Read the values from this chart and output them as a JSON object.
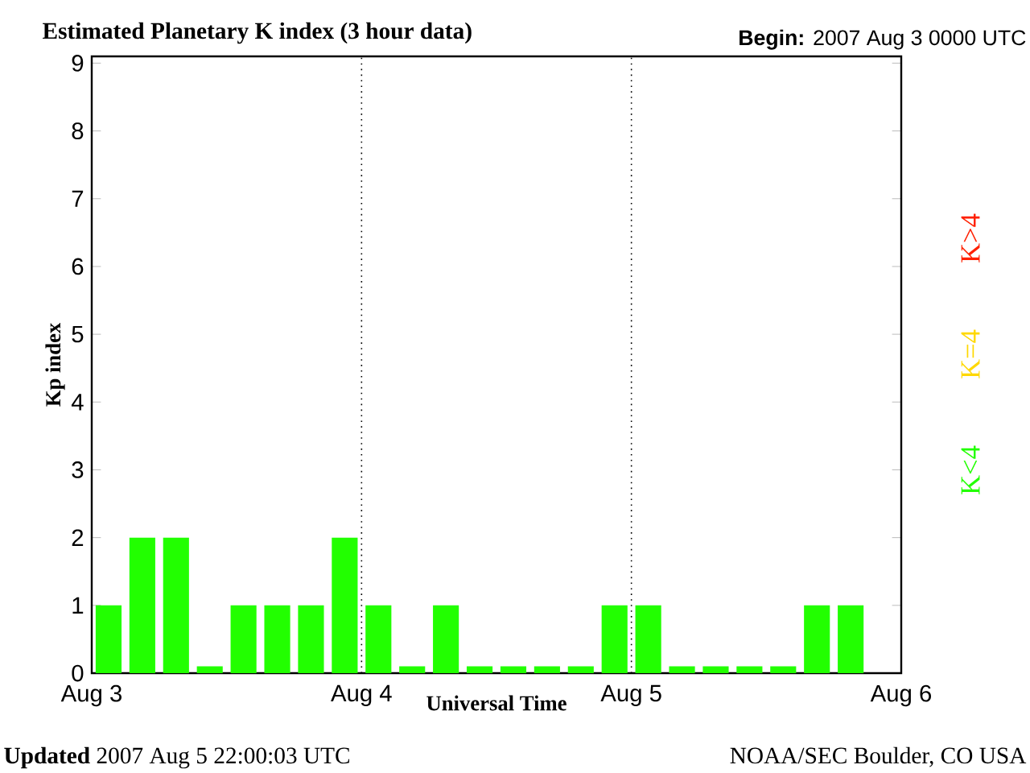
{
  "chart_data": {
    "type": "bar",
    "title": "Estimated Planetary K index (3 hour data)",
    "subtitle": "**Begin:**  2007 Aug 3 0000 UTC",
    "xlabel": "Universal Time",
    "ylabel": "Kp index",
    "annotations": [
      "**Updated** 2007 Aug  5 22:00:03 UTC",
      "NOAA/SEC Boulder, CO USA"
    ],
    "x": [
      "2007-08-03T01:30",
      "2007-08-03T04:30",
      "2007-08-03T07:30",
      "2007-08-03T10:30",
      "2007-08-03T13:30",
      "2007-08-03T16:30",
      "2007-08-03T19:30",
      "2007-08-03T22:30",
      "2007-08-04T01:30",
      "2007-08-04T04:30",
      "2007-08-04T07:30",
      "2007-08-04T10:30",
      "2007-08-04T13:30",
      "2007-08-04T16:30",
      "2007-08-04T19:30",
      "2007-08-04T22:30",
      "2007-08-05T01:30",
      "2007-08-05T04:30",
      "2007-08-05T07:30",
      "2007-08-05T10:30",
      "2007-08-05T13:30",
      "2007-08-05T16:30",
      "2007-08-05T19:30"
    ],
    "series": [
      {
        "name": "K<4",
        "color": "#22ff00",
        "values": [
          1,
          2,
          2,
          0.1,
          1,
          1,
          1,
          2,
          1,
          0.1,
          1,
          0.1,
          0.1,
          0.1,
          0.1,
          1,
          1,
          0.1,
          0.1,
          0.1,
          0.1,
          1,
          1
        ]
      },
      {
        "name": "K=4",
        "color": "#ffd800",
        "values": [
          null,
          null,
          null,
          null,
          null,
          null,
          null,
          null,
          null,
          null,
          null,
          null,
          null,
          null,
          null,
          null,
          null,
          null,
          null,
          null,
          null,
          null,
          null
        ]
      },
      {
        "name": "K>4",
        "color": "#ff2000",
        "values": [
          null,
          null,
          null,
          null,
          null,
          null,
          null,
          null,
          null,
          null,
          null,
          null,
          null,
          null,
          null,
          null,
          null,
          null,
          null,
          null,
          null,
          null,
          null
        ]
      }
    ],
    "xlim": [
      "2007-08-03",
      "2007-08-06"
    ],
    "xticks": [
      {
        "value": "2007-08-03",
        "label": "Aug 3"
      },
      {
        "value": "2007-08-04",
        "label": "Aug 4"
      },
      {
        "value": "2007-08-05",
        "label": "Aug 5"
      },
      {
        "value": "2007-08-06",
        "label": "Aug 6"
      }
    ],
    "ylim": [
      0,
      9.1
    ],
    "yticks": [
      0,
      1,
      2,
      3,
      4,
      5,
      6,
      7,
      8,
      9
    ],
    "ref_lines": [
      {
        "axis": "x",
        "value": "2007-08-04",
        "line_style": "dotted",
        "color": "#000000"
      },
      {
        "axis": "x",
        "value": "2007-08-05",
        "line_style": "dotted",
        "color": "#000000"
      }
    ],
    "legend": "right"
  }
}
